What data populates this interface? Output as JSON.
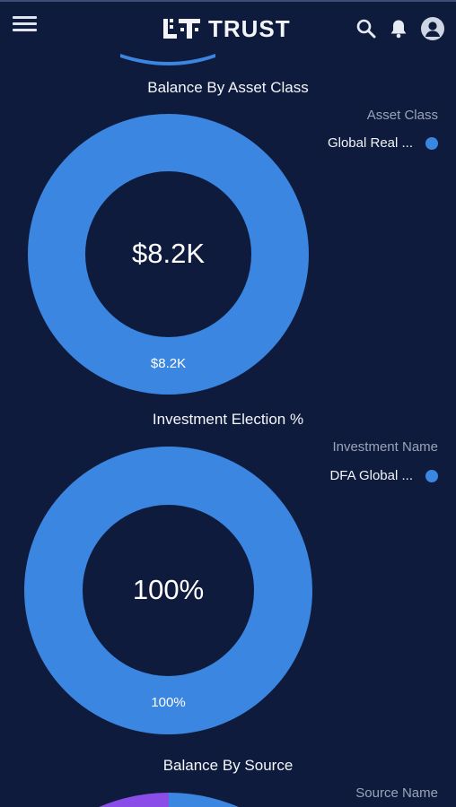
{
  "header": {
    "brand": "TRUST",
    "icons": [
      "menu-icon",
      "search-icon",
      "bell-icon",
      "avatar-icon"
    ]
  },
  "colors": {
    "background": "#0f1b3d",
    "donut_blue": "#3b86e0",
    "purple": "#8a4de8"
  },
  "charts": [
    {
      "title": "Balance By Asset Class",
      "legend_title": "Asset Class",
      "legend_item": "Global Real ...",
      "center_value": "$8.2K",
      "segment_label": "$8.2K"
    },
    {
      "title": "Investment Election %",
      "legend_title": "Investment Name",
      "legend_item": "DFA Global ...",
      "center_value": "100%",
      "segment_label": "100%"
    },
    {
      "title": "Balance By Source",
      "legend_title": "Source Name"
    }
  ],
  "chart_data": [
    {
      "type": "pie",
      "title": "Balance By Asset Class",
      "legend_title": "Asset Class",
      "categories": [
        "Global Real ..."
      ],
      "values": [
        8200
      ],
      "center_label": "$8.2K"
    },
    {
      "type": "pie",
      "title": "Investment Election %",
      "legend_title": "Investment Name",
      "categories": [
        "DFA Global ..."
      ],
      "values": [
        100
      ],
      "center_label": "100%"
    }
  ]
}
